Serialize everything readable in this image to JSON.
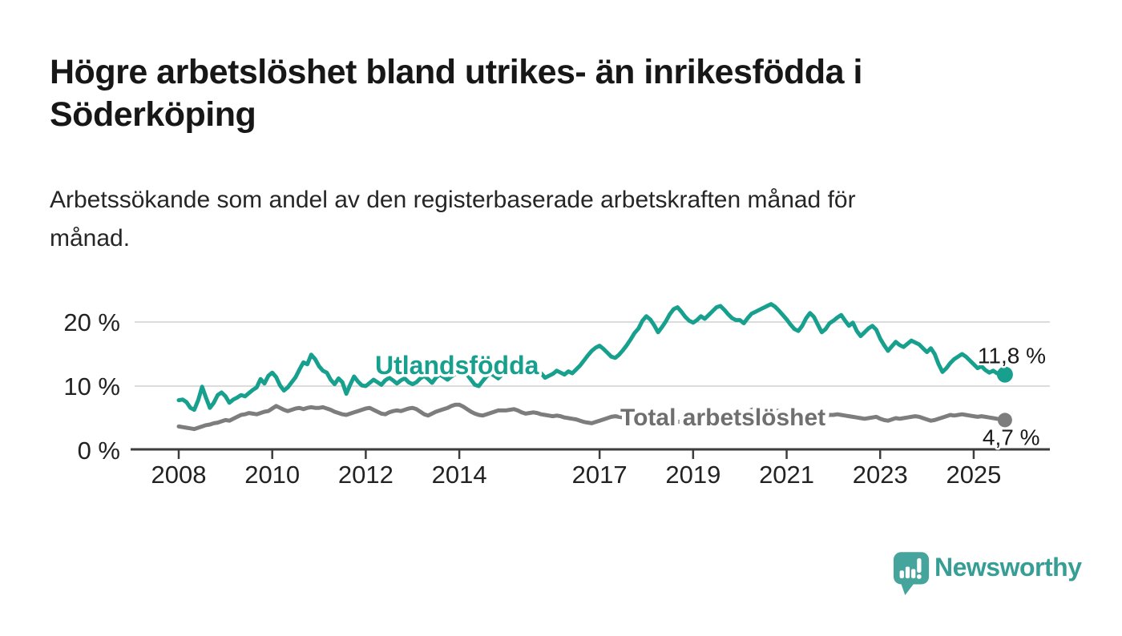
{
  "page": {
    "title": "Högre arbetslöshet bland utrikes- än inrikesfödda i Söderköping",
    "title_lines": [
      "Högre arbetslöshet bland utrikes- än inrikesfödda i",
      "Söderköping"
    ],
    "subtitle": "Arbetssökande som andel av den registerbaserade arbetskraften månad för månad.",
    "subtitle_lines": [
      "Arbetssökande som andel av den registerbaserade arbetskraften månad för",
      "månad."
    ]
  },
  "branding": {
    "logo_text": "Newsworthy",
    "logo_icon": "newsworthy-bar-chart-speech-bubble-icon",
    "logo_icon_color": "#45a49b",
    "logo_text_color": "#379e95"
  },
  "colors": {
    "background": "#ffffff",
    "title": "#171717",
    "subtitle": "#262626",
    "axis": "#3d3d3d",
    "axis_text": "#222222",
    "gridline": "#dcdcdc",
    "utlandsfodda_line": "#17a08e",
    "total_line": "#7d7d7d",
    "total_label": "#6f6f6f",
    "end_label_text": "#1a1a1a"
  },
  "chart_data": {
    "type": "line",
    "frequency": "monthly",
    "x_start": "2008-01",
    "x_end": "2025-09",
    "grid": "horizontal-only",
    "legend": "inline-labels",
    "ylim": [
      0,
      24
    ],
    "y_ticks": [
      {
        "label": "20 %",
        "value": 20
      },
      {
        "label": "10 %",
        "value": 10
      },
      {
        "label": "0 %",
        "value": 0
      }
    ],
    "x_tick_labels": [
      "2008",
      "2010",
      "2012",
      "2014",
      "2017",
      "2019",
      "2021",
      "2023",
      "2025"
    ],
    "x_tick_years": [
      2008,
      2010,
      2012,
      2014,
      2017,
      2019,
      2021,
      2023,
      2025
    ],
    "series": [
      {
        "name": "Utlandsfödda",
        "color": "#17a08e",
        "end_label": "11,8 %",
        "end_value": 11.8,
        "values": [
          7.8,
          7.9,
          7.5,
          6.6,
          6.3,
          7.8,
          9.9,
          8.2,
          6.6,
          7.4,
          8.6,
          9.0,
          8.4,
          7.4,
          7.9,
          8.2,
          8.6,
          8.4,
          8.9,
          9.4,
          9.8,
          11.1,
          10.4,
          11.6,
          12.1,
          11.4,
          10.1,
          9.3,
          9.8,
          10.6,
          11.4,
          12.6,
          13.7,
          13.4,
          14.9,
          14.2,
          13.1,
          12.4,
          12.1,
          11.0,
          10.3,
          11.2,
          10.6,
          8.8,
          10.2,
          11.5,
          10.7,
          10.1,
          10.0,
          10.5,
          11.0,
          10.6,
          10.2,
          10.9,
          11.3,
          10.9,
          10.4,
          10.9,
          11.2,
          10.6,
          10.3,
          10.6,
          11.2,
          11.6,
          11.1,
          10.5,
          11.3,
          11.8,
          11.4,
          11.0,
          11.5,
          11.9,
          12.2,
          12.6,
          11.8,
          11.0,
          10.2,
          10.0,
          10.8,
          11.5,
          12.0,
          11.6,
          11.2,
          11.8,
          12.3,
          12.7,
          13.1,
          12.8,
          12.4,
          12.9,
          13.3,
          12.9,
          12.4,
          12.0,
          11.3,
          11.6,
          11.9,
          12.4,
          12.1,
          11.8,
          12.3,
          12.0,
          12.6,
          13.2,
          14.0,
          14.8,
          15.5,
          16.0,
          16.3,
          15.8,
          15.2,
          14.6,
          14.4,
          14.9,
          15.6,
          16.4,
          17.3,
          18.3,
          19.0,
          20.2,
          20.9,
          20.4,
          19.5,
          18.4,
          19.2,
          20.1,
          21.2,
          22.0,
          22.3,
          21.6,
          20.8,
          20.2,
          19.9,
          20.3,
          20.9,
          20.5,
          21.1,
          21.7,
          22.3,
          22.5,
          21.9,
          21.2,
          20.6,
          20.3,
          20.3,
          19.8,
          20.6,
          21.3,
          21.6,
          21.9,
          22.2,
          22.5,
          22.8,
          22.4,
          21.8,
          21.1,
          20.4,
          19.6,
          18.9,
          18.6,
          19.4,
          20.6,
          21.4,
          20.8,
          19.6,
          18.4,
          18.9,
          19.8,
          20.2,
          20.7,
          21.1,
          20.2,
          19.4,
          19.9,
          18.6,
          17.8,
          18.4,
          19.0,
          19.4,
          18.8,
          17.4,
          16.4,
          15.5,
          16.2,
          16.9,
          16.4,
          16.1,
          16.6,
          17.1,
          16.8,
          16.5,
          15.9,
          15.3,
          15.9,
          15.0,
          13.4,
          12.2,
          12.8,
          13.6,
          14.2,
          14.6,
          15.0,
          14.6,
          14.0,
          13.4,
          12.8,
          13.1,
          12.5,
          12.1,
          12.4,
          12.0,
          11.9,
          11.8
        ]
      },
      {
        "name": "Total arbetslöshet",
        "color": "#7d7d7d",
        "end_label": "4,7 %",
        "end_value": 4.7,
        "values": [
          3.7,
          3.6,
          3.5,
          3.4,
          3.3,
          3.5,
          3.7,
          3.9,
          4.0,
          4.2,
          4.3,
          4.5,
          4.7,
          4.6,
          4.9,
          5.2,
          5.5,
          5.6,
          5.8,
          5.7,
          5.6,
          5.8,
          6.0,
          6.1,
          6.5,
          6.9,
          6.6,
          6.3,
          6.1,
          6.3,
          6.5,
          6.6,
          6.4,
          6.6,
          6.7,
          6.6,
          6.6,
          6.7,
          6.5,
          6.3,
          6.0,
          5.8,
          5.6,
          5.5,
          5.7,
          5.9,
          6.1,
          6.3,
          6.5,
          6.6,
          6.3,
          6.0,
          5.7,
          5.6,
          5.9,
          6.1,
          6.2,
          6.1,
          6.3,
          6.5,
          6.6,
          6.4,
          6.0,
          5.6,
          5.4,
          5.7,
          6.0,
          6.2,
          6.4,
          6.6,
          6.9,
          7.1,
          7.1,
          6.8,
          6.4,
          6.0,
          5.7,
          5.5,
          5.4,
          5.6,
          5.8,
          6.0,
          6.2,
          6.2,
          6.2,
          6.3,
          6.4,
          6.2,
          5.9,
          5.7,
          5.8,
          5.9,
          5.8,
          5.6,
          5.5,
          5.4,
          5.3,
          5.4,
          5.3,
          5.1,
          5.0,
          4.9,
          4.8,
          4.6,
          4.4,
          4.3,
          4.2,
          4.4,
          4.6,
          4.8,
          5.0,
          5.2,
          5.3,
          5.2,
          5.1,
          5.0,
          4.9,
          4.8,
          4.8,
          4.7,
          4.7,
          4.6,
          4.6,
          4.5,
          4.4,
          4.5,
          4.6,
          4.5,
          4.4,
          4.5,
          4.6,
          4.7,
          4.8,
          4.9,
          5.0,
          4.9,
          4.9,
          5.0,
          5.1,
          5.0,
          5.0,
          5.1,
          5.2,
          5.3,
          5.5,
          5.7,
          6.0,
          6.3,
          6.5,
          6.6,
          6.5,
          6.4,
          6.3,
          6.2,
          6.1,
          6.0,
          5.9,
          5.8,
          5.7,
          5.6,
          5.5,
          5.4,
          5.3,
          5.2,
          5.2,
          5.3,
          5.4,
          5.5,
          5.5,
          5.6,
          5.5,
          5.4,
          5.3,
          5.2,
          5.1,
          5.0,
          4.9,
          5.0,
          5.1,
          5.2,
          4.9,
          4.7,
          4.6,
          4.8,
          5.0,
          4.9,
          5.0,
          5.1,
          5.2,
          5.3,
          5.2,
          5.0,
          4.8,
          4.6,
          4.7,
          4.9,
          5.1,
          5.3,
          5.5,
          5.4,
          5.5,
          5.6,
          5.5,
          5.4,
          5.3,
          5.2,
          5.3,
          5.2,
          5.1,
          5.0,
          4.9,
          4.8,
          4.7
        ]
      }
    ]
  }
}
